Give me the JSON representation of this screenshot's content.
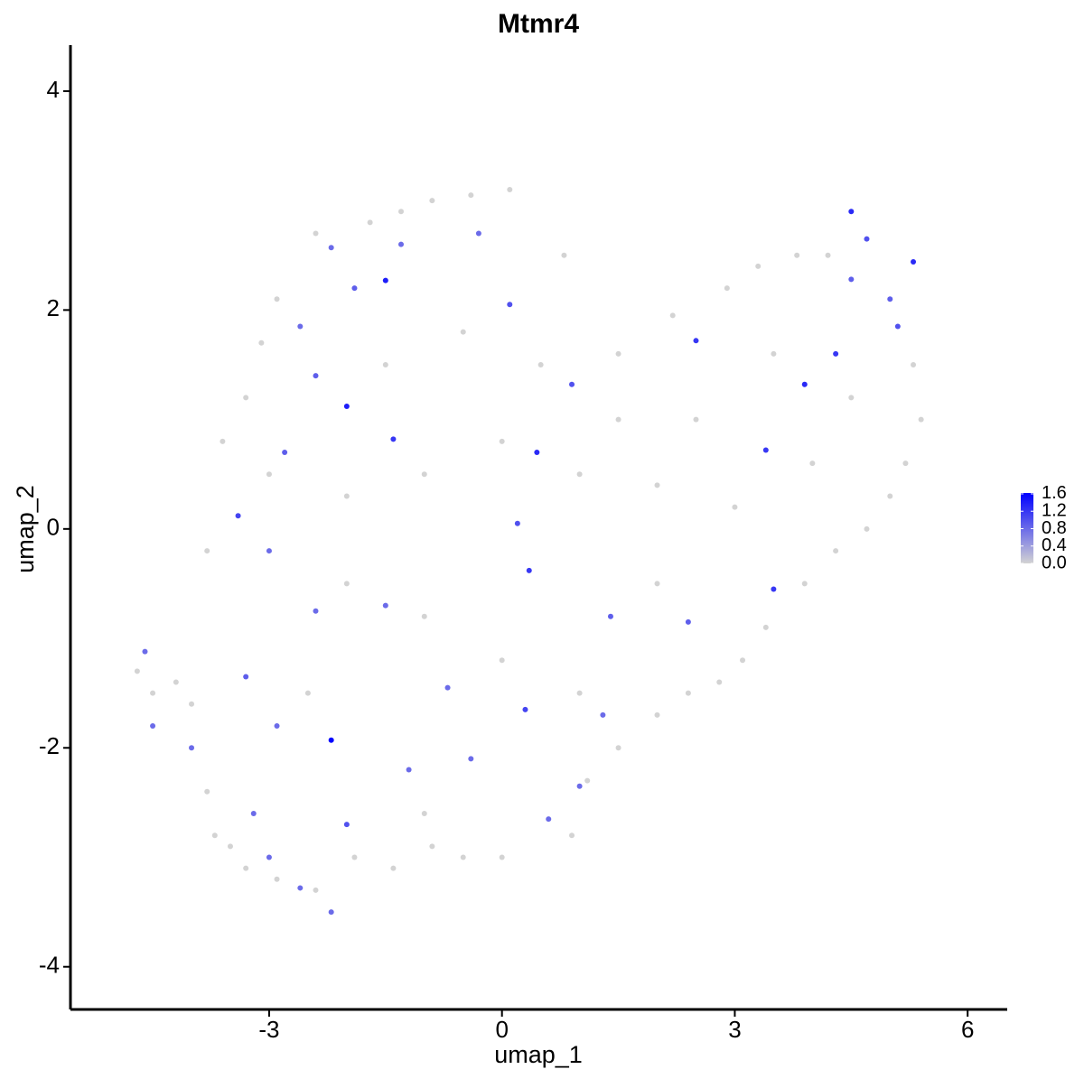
{
  "chart_data": {
    "type": "scatter",
    "title": "Mtmr4",
    "x_label": "umap_1",
    "y_label": "umap_2",
    "xlim": [
      -5.56,
      6.51
    ],
    "ylim": [
      -4.39,
      4.42
    ],
    "xticks": [
      -3,
      0,
      3,
      6
    ],
    "yticks": [
      -4,
      -2,
      0,
      2,
      4
    ],
    "color_low": "#d3d3d3",
    "color_high": "#0000ff",
    "colorlim": [
      0,
      1.62
    ],
    "colorticks": [
      {
        "value": 0,
        "label": "0.0"
      },
      {
        "value": 0.4,
        "label": "0.4"
      },
      {
        "value": 0.8,
        "label": "0.8"
      },
      {
        "value": 1.2,
        "label": "1.2"
      },
      {
        "value": 1.6,
        "label": "1.6"
      }
    ],
    "x": [
      -4.7,
      -4.5,
      -4.2,
      -4.0,
      -3.8,
      -3.7,
      -3.5,
      -3.3,
      -2.9,
      -2.4,
      -1.9,
      -1.4,
      -0.9,
      -0.5,
      0.0,
      0.9,
      1.1,
      1.5,
      2.0,
      2.4,
      2.8,
      3.1,
      3.4,
      3.9,
      4.3,
      4.7,
      5.0,
      5.2,
      5.4,
      5.3,
      4.2,
      3.8,
      3.3,
      2.9,
      2.2,
      1.5,
      0.8,
      0.1,
      -0.4,
      -0.9,
      -1.3,
      -1.7,
      -2.4,
      -2.9,
      -3.1,
      -3.3,
      -3.6,
      -3.8,
      -3.0,
      -2.0,
      -1.0,
      0.0,
      1.0,
      2.0,
      3.0,
      4.0,
      4.5,
      3.5,
      2.5,
      1.5,
      0.5,
      -0.5,
      -1.5,
      -2.0,
      -1.0,
      0.0,
      1.0,
      2.0,
      -2.5,
      -1.0,
      -2.2,
      -1.5,
      -1.3,
      -0.3,
      0.1,
      -1.9,
      -2.6,
      -2.4,
      -2.0,
      -2.8,
      -1.4,
      0.45,
      0.9,
      -3.4,
      -3.0,
      -2.4,
      -1.5,
      0.35,
      0.2,
      0.3,
      1.4,
      3.5,
      2.4,
      3.4,
      3.9,
      2.5,
      4.3,
      4.5,
      4.7,
      4.5,
      5.0,
      5.3,
      5.1,
      -2.2,
      -2.9,
      -3.3,
      -4.0,
      -3.2,
      -2.6,
      -2.2,
      -2.0,
      -1.2,
      -0.4,
      0.6,
      1.3,
      -0.7,
      -4.5,
      -4.6,
      1.0,
      -3.0
    ],
    "y": [
      -1.3,
      -1.5,
      -1.4,
      -1.6,
      -2.4,
      -2.8,
      -2.9,
      -3.1,
      -3.2,
      -3.3,
      -3.0,
      -3.1,
      -2.9,
      -3.0,
      -3.0,
      -2.8,
      -2.3,
      -2.0,
      -1.7,
      -1.5,
      -1.4,
      -1.2,
      -0.9,
      -0.5,
      -0.2,
      0.0,
      0.3,
      0.6,
      1.0,
      1.5,
      2.5,
      2.5,
      2.4,
      2.2,
      1.95,
      1.6,
      2.5,
      3.1,
      3.05,
      3.0,
      2.9,
      2.8,
      2.7,
      2.1,
      1.7,
      1.2,
      0.8,
      -0.2,
      0.5,
      0.3,
      0.5,
      0.8,
      0.5,
      0.4,
      0.2,
      0.6,
      1.2,
      1.6,
      1.0,
      1.0,
      1.5,
      1.8,
      1.5,
      -0.5,
      -0.8,
      -1.2,
      -1.5,
      -0.5,
      -1.5,
      -2.6,
      2.57,
      2.27,
      2.6,
      2.7,
      2.05,
      2.2,
      1.85,
      1.4,
      1.12,
      0.7,
      0.82,
      0.7,
      1.32,
      0.12,
      -0.2,
      -0.75,
      -0.7,
      -0.38,
      0.05,
      -1.65,
      -0.8,
      -0.55,
      -0.85,
      0.72,
      1.32,
      1.72,
      1.6,
      2.9,
      2.65,
      2.28,
      2.1,
      2.44,
      1.85,
      -1.93,
      -1.8,
      -1.35,
      -2.0,
      -2.6,
      -3.28,
      -3.5,
      -2.7,
      -2.2,
      -2.1,
      -2.65,
      -1.7,
      -1.45,
      -1.8,
      -1.12,
      -2.35,
      -3.0
    ],
    "values": [
      0,
      0,
      0,
      0,
      0,
      0,
      0,
      0,
      0,
      0,
      0,
      0,
      0,
      0,
      0,
      0,
      0,
      0,
      0,
      0,
      0,
      0,
      0,
      0,
      0,
      0,
      0,
      0,
      0,
      0,
      0,
      0,
      0,
      0,
      0,
      0,
      0,
      0,
      0,
      0,
      0,
      0,
      0,
      0,
      0,
      0,
      0,
      0,
      0,
      0,
      0,
      0,
      0,
      0,
      0,
      0,
      0,
      0,
      0,
      0,
      0,
      0,
      0,
      0,
      0,
      0,
      0,
      0,
      0,
      0,
      0.8,
      1.4,
      0.8,
      0.8,
      1.0,
      0.9,
      0.8,
      0.9,
      1.4,
      0.9,
      1.2,
      1.3,
      1.0,
      1.1,
      0.8,
      0.8,
      0.8,
      1.2,
      1.0,
      1.1,
      0.9,
      1.2,
      0.9,
      1.2,
      1.3,
      1.2,
      1.2,
      1.3,
      1.0,
      0.9,
      0.9,
      1.3,
      1.0,
      1.6,
      0.8,
      0.9,
      0.8,
      0.8,
      0.8,
      0.8,
      1.0,
      0.8,
      0.8,
      0.8,
      0.8,
      0.8,
      0.8,
      0.8,
      0.8,
      0.8
    ]
  }
}
